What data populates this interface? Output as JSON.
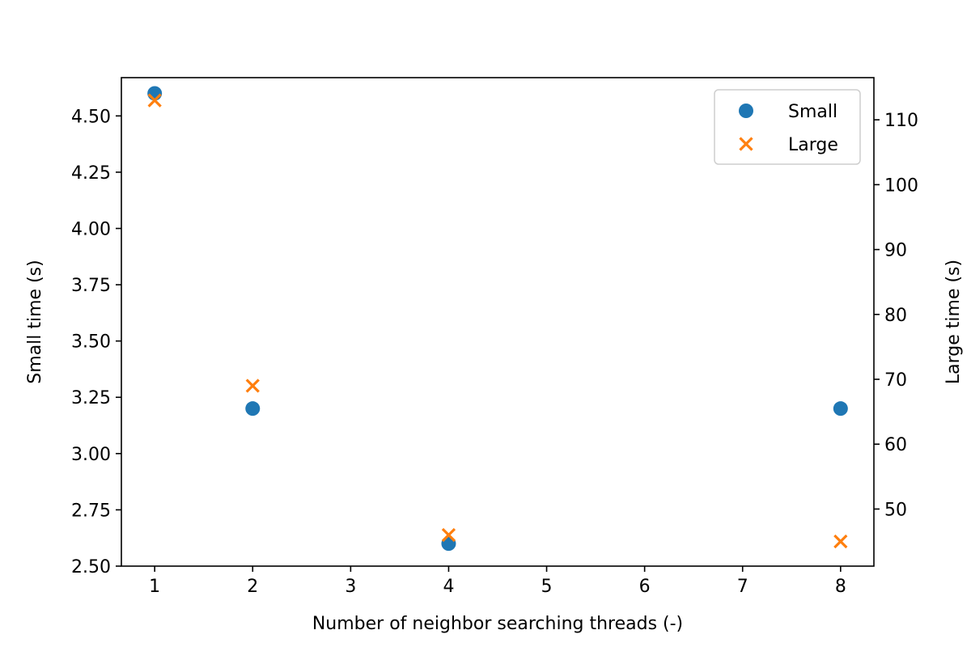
{
  "chart_data": {
    "type": "scatter",
    "title": "",
    "xlabel": "Number of neighbor searching threads (-)",
    "ylabel_left": "Small time (s)",
    "ylabel_right": "Large time (s)",
    "x_ticks": [
      1,
      2,
      3,
      4,
      5,
      6,
      7,
      8
    ],
    "x_tick_labels": [
      "1",
      "2",
      "3",
      "4",
      "5",
      "6",
      "7",
      "8"
    ],
    "x_range": [
      0.66,
      8.34
    ],
    "y_left_ticks": [
      2.5,
      2.75,
      3.0,
      3.25,
      3.5,
      3.75,
      4.0,
      4.25,
      4.5
    ],
    "y_left_tick_labels": [
      "2.50",
      "2.75",
      "3.00",
      "3.25",
      "3.50",
      "3.75",
      "4.00",
      "4.25",
      "4.50"
    ],
    "y_left_range": [
      2.5,
      4.67
    ],
    "y_right_ticks": [
      50,
      60,
      70,
      80,
      90,
      100,
      110
    ],
    "y_right_tick_labels": [
      "50",
      "60",
      "70",
      "80",
      "90",
      "100",
      "110"
    ],
    "y_right_range": [
      41.2,
      116.5
    ],
    "legend_position": "top-right",
    "grid": false,
    "series": [
      {
        "name": "Small",
        "axis": "left",
        "marker": "circle",
        "color": "#1f77b4",
        "x": [
          1,
          2,
          4,
          8
        ],
        "y": [
          4.6,
          3.2,
          2.6,
          3.2
        ]
      },
      {
        "name": "Large",
        "axis": "right",
        "marker": "x",
        "color": "#ff7f0e",
        "x": [
          1,
          2,
          4,
          8
        ],
        "y": [
          113,
          69,
          46,
          45
        ]
      }
    ]
  }
}
